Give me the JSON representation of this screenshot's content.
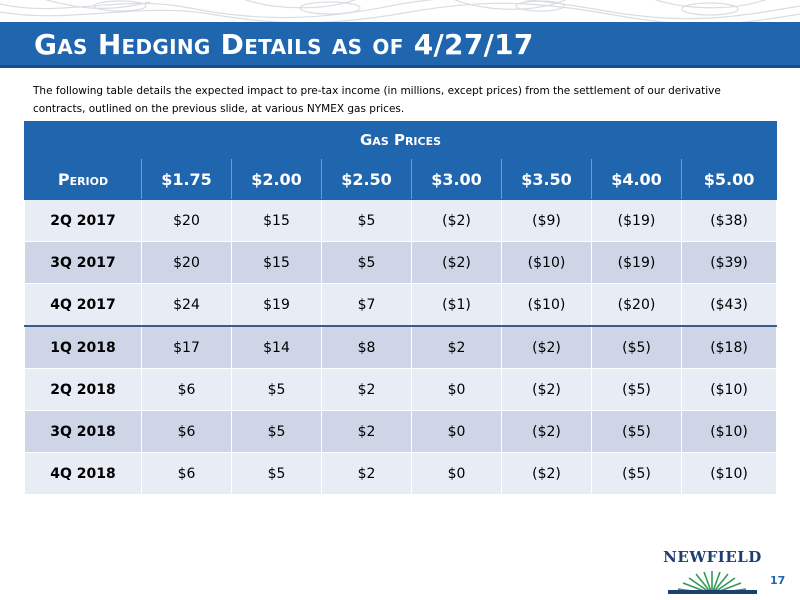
{
  "header": {
    "title": "Gas Hedging Details as of 4/27/17"
  },
  "intro": "The following table details the expected impact to pre-tax income (in millions, except prices) from the settlement of our derivative contracts, outlined on the previous slide, at various NYMEX gas prices.",
  "table": {
    "group_header": "Gas Prices",
    "columns": [
      "Period",
      "$1.75",
      "$2.00",
      "$2.50",
      "$3.00",
      "$3.50",
      "$4.00",
      "$5.00"
    ],
    "rows": [
      [
        "2Q 2017",
        "$20",
        "$15",
        "$5",
        "($2)",
        "($9)",
        "($19)",
        "($38)"
      ],
      [
        "3Q 2017",
        "$20",
        "$15",
        "$5",
        "($2)",
        "($10)",
        "($19)",
        "($39)"
      ],
      [
        "4Q 2017",
        "$24",
        "$19",
        "$7",
        "($1)",
        "($10)",
        "($20)",
        "($43)"
      ],
      [
        "1Q 2018",
        "$17",
        "$14",
        "$8",
        "$2",
        "($2)",
        "($5)",
        "($18)"
      ],
      [
        "2Q 2018",
        "$6",
        "$5",
        "$2",
        "$0",
        "($2)",
        "($5)",
        "($10)"
      ],
      [
        "3Q 2018",
        "$6",
        "$5",
        "$2",
        "$0",
        "($2)",
        "($5)",
        "($10)"
      ],
      [
        "4Q 2018",
        "$6",
        "$5",
        "$2",
        "$0",
        "($2)",
        "($5)",
        "($10)"
      ]
    ]
  },
  "logo": {
    "name": "NEWFIELD"
  },
  "page_number": "17",
  "colors": {
    "header_blue": "#1f66ae",
    "row_light": "#e8ecf5",
    "row_dark": "#cdd5e7",
    "logo_navy": "#1d3f72",
    "logo_green": "#2f9b56"
  }
}
